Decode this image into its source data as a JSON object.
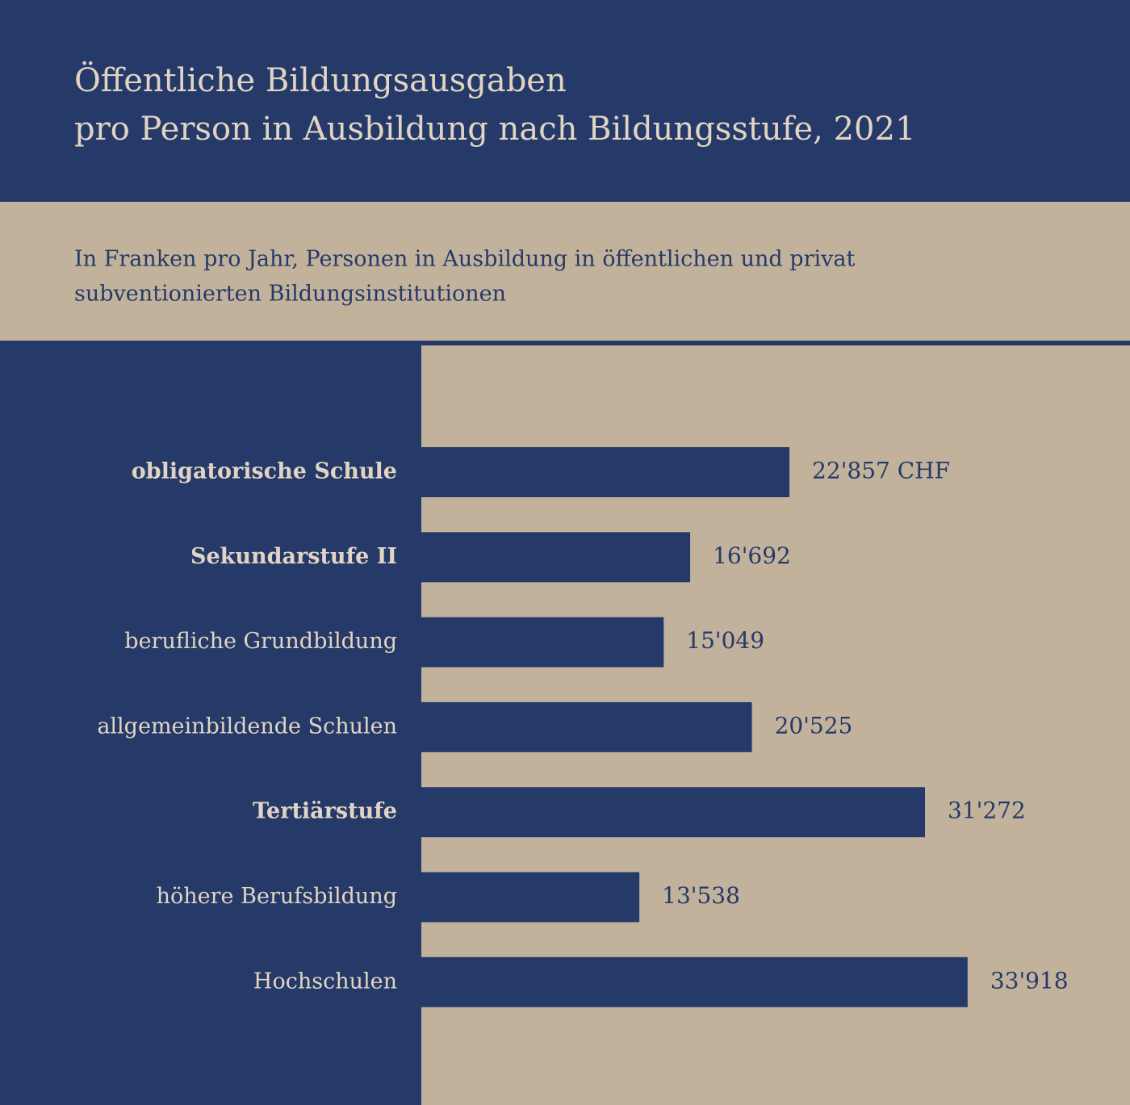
{
  "chart_data": {
    "type": "barh",
    "title": [
      "Öffentliche Bildungsausgaben",
      "pro Person in Ausbildung nach Bildungsstufe, 2021"
    ],
    "subtitle": [
      "In Franken pro Jahr, Personen in Ausbildung in öffentlichen und privat",
      "subventionierten Bildungsinstitutionen"
    ],
    "categories": [
      "obligatorische Schule",
      "Sekundarstufe II",
      "berufliche Grundbildung",
      "allgemeinbildende Schulen",
      "Tertiärstufe",
      "höhere Berufsbildung",
      "Hochschulen"
    ],
    "bold_categories": [
      true,
      true,
      false,
      false,
      true,
      false,
      false
    ],
    "values": [
      22857,
      16692,
      15049,
      20525,
      31272,
      13538,
      33918
    ],
    "value_labels": [
      "22'857 CHF",
      "16'692",
      "15'049",
      "20'525",
      "31'272",
      "13'538",
      "33'918"
    ],
    "color": "#253a69",
    "xlim": [
      0,
      44000
    ]
  }
}
